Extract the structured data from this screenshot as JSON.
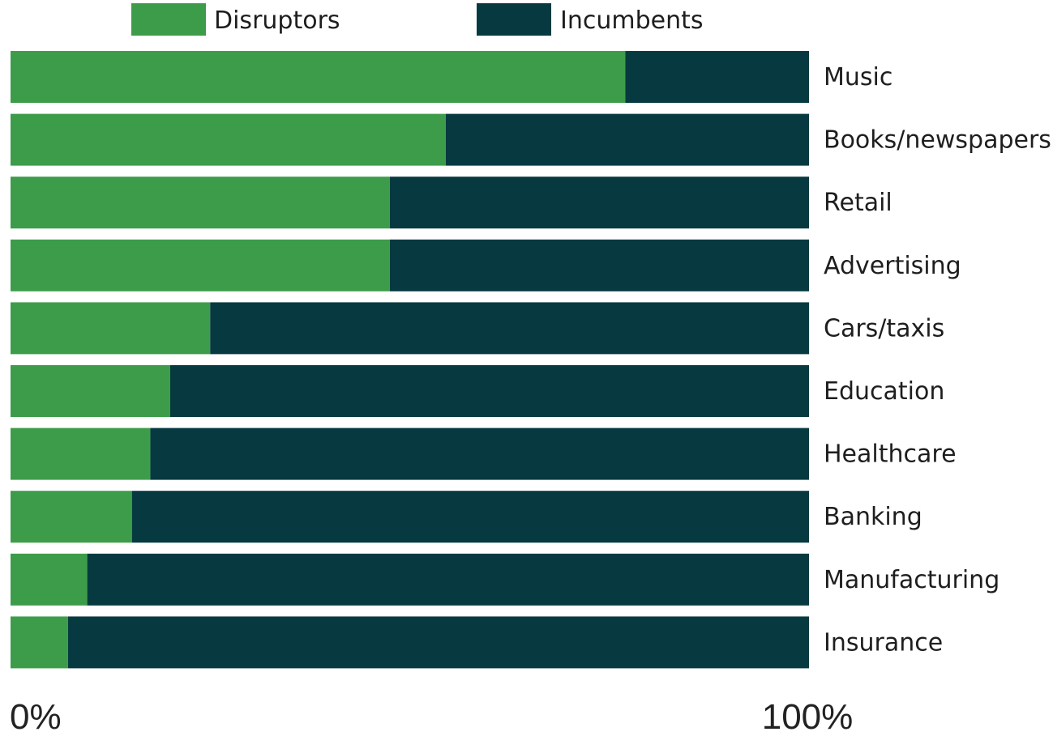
{
  "chart_data": {
    "type": "bar",
    "orientation": "horizontal",
    "stacked": true,
    "normalized_percent": true,
    "categories": [
      "Music",
      "Books/newspapers",
      "Retail",
      "Advertising",
      "Cars/taxis",
      "Education",
      "Healthcare",
      "Banking",
      "Manufacturing",
      "Insurance"
    ],
    "series": [
      {
        "name": "Disruptors",
        "color": "#3d9c4a",
        "values": [
          77,
          54.5,
          47.5,
          47.5,
          25,
          20,
          17.5,
          15.2,
          9.6,
          7.2
        ]
      },
      {
        "name": "Incumbents",
        "color": "#063a40",
        "values": [
          23,
          45.5,
          52.5,
          52.5,
          75,
          80,
          82.5,
          84.8,
          90.4,
          92.8
        ]
      }
    ],
    "xlim": [
      0,
      100
    ],
    "x_tick_labels": [
      "0%",
      "100%"
    ],
    "legend_position": "top",
    "category_labels_position": "right",
    "grid": false
  }
}
